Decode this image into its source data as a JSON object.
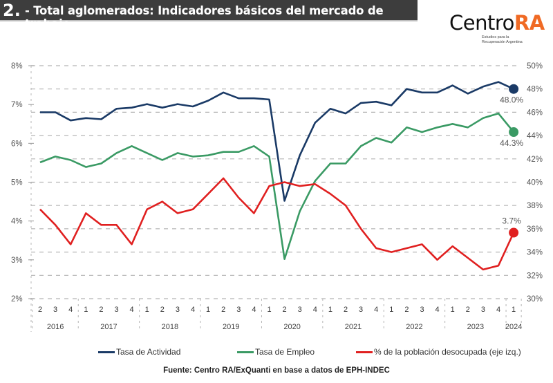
{
  "header": {
    "number": "2.",
    "title": "- Total aglomerados: Indicadores básicos del mercado de trabajo"
  },
  "logo": {
    "name_part1": "Centro",
    "name_part2": "RA",
    "subtitle_line1": "Estudios para la",
    "subtitle_line2": "Recuperación Argentina",
    "accent_color": "#f06a24"
  },
  "legend": [
    {
      "label": "Tasa de Actividad",
      "color": "#1a3a66"
    },
    {
      "label": "Tasa de Empleo",
      "color": "#3a9a64"
    },
    {
      "label": "% de la población desocupada (eje izq.)",
      "color": "#e02020"
    }
  ],
  "source": "Fuente: Centro RA/ExQuanti en base a datos de EPH-INDEC",
  "chart_data": {
    "type": "line",
    "title": "Total aglomerados: Indicadores básicos del mercado de trabajo",
    "x_quarters": [
      "2",
      "3",
      "4",
      "1",
      "2",
      "3",
      "4",
      "1",
      "2",
      "3",
      "4",
      "1",
      "2",
      "3",
      "4",
      "1",
      "2",
      "3",
      "4",
      "1",
      "2",
      "3",
      "4",
      "1",
      "2",
      "3",
      "4",
      "1",
      "2",
      "3",
      "4",
      "1"
    ],
    "x_years": [
      {
        "label": "2016",
        "count": 3
      },
      {
        "label": "2017",
        "count": 4
      },
      {
        "label": "2018",
        "count": 4
      },
      {
        "label": "2019",
        "count": 4
      },
      {
        "label": "2020",
        "count": 4
      },
      {
        "label": "2021",
        "count": 4
      },
      {
        "label": "2022",
        "count": 4
      },
      {
        "label": "2023",
        "count": 4
      },
      {
        "label": "2024",
        "count": 1
      }
    ],
    "y_left": {
      "min": 2,
      "max": 8,
      "ticks": [
        "2%",
        "3%",
        "4%",
        "5%",
        "6%",
        "7%",
        "8%"
      ]
    },
    "y_right": {
      "min": 30,
      "max": 50,
      "ticks": [
        "30%",
        "32%",
        "34%",
        "36%",
        "38%",
        "40%",
        "42%",
        "44%",
        "46%",
        "48%",
        "50%"
      ]
    },
    "grid": true,
    "legend_position": "bottom",
    "series": [
      {
        "name": "Tasa de Actividad",
        "axis": "right",
        "color": "#1a3a66",
        "values": [
          46.0,
          46.0,
          45.3,
          45.5,
          45.4,
          46.3,
          46.4,
          46.7,
          46.4,
          46.7,
          46.5,
          47.0,
          47.7,
          47.2,
          47.2,
          47.1,
          38.4,
          42.3,
          45.1,
          46.3,
          45.9,
          46.8,
          46.9,
          46.6,
          48.0,
          47.7,
          47.7,
          48.3,
          47.6,
          48.2,
          48.6,
          48.0
        ],
        "end_label": "48.0%"
      },
      {
        "name": "Tasa de Empleo",
        "axis": "right",
        "color": "#3a9a64",
        "values": [
          41.7,
          42.2,
          41.9,
          41.3,
          41.6,
          42.5,
          43.1,
          42.5,
          41.9,
          42.5,
          42.2,
          42.3,
          42.6,
          42.6,
          43.1,
          42.2,
          33.4,
          37.5,
          40.1,
          41.6,
          41.6,
          43.1,
          43.8,
          43.4,
          44.7,
          44.3,
          44.7,
          45.0,
          44.7,
          45.5,
          45.9,
          44.3
        ],
        "end_label": "44.3%"
      },
      {
        "name": "% de la población desocupada (eje izq.)",
        "axis": "left",
        "color": "#e02020",
        "values": [
          4.3,
          3.9,
          3.4,
          4.2,
          3.9,
          3.9,
          3.4,
          4.3,
          4.5,
          4.2,
          4.3,
          4.7,
          5.1,
          4.6,
          4.2,
          4.9,
          5.0,
          4.9,
          4.95,
          4.7,
          4.4,
          3.8,
          3.3,
          3.2,
          3.3,
          3.4,
          3.0,
          3.35,
          3.05,
          2.75,
          2.85,
          3.7
        ],
        "end_label": "3.7%"
      }
    ]
  }
}
